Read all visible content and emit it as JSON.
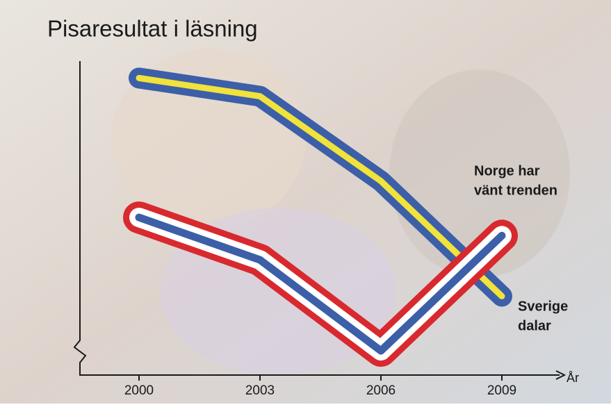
{
  "chart_data": {
    "type": "line",
    "title": "Pisaresultat i läsning",
    "x": [
      2000,
      2003,
      2006,
      2009
    ],
    "xlim": [
      1998.5,
      2010.5
    ],
    "xticks": [
      2000,
      2003,
      2006,
      2009
    ],
    "x_label": "År",
    "ylim": [
      470,
      525
    ],
    "series": [
      {
        "colors": [
          "#3c5fa8",
          "#f1e23c"
        ],
        "values": [
          519,
          516,
          502,
          483
        ]
      },
      {
        "colors": [
          "#d8292f",
          "#ffffff",
          "#3c5fa8"
        ],
        "values": [
          496,
          489,
          474,
          493
        ]
      }
    ],
    "annotations": [
      [
        "Norge har",
        "vänt trenden"
      ],
      [
        "Sverige",
        "dalar"
      ]
    ]
  }
}
